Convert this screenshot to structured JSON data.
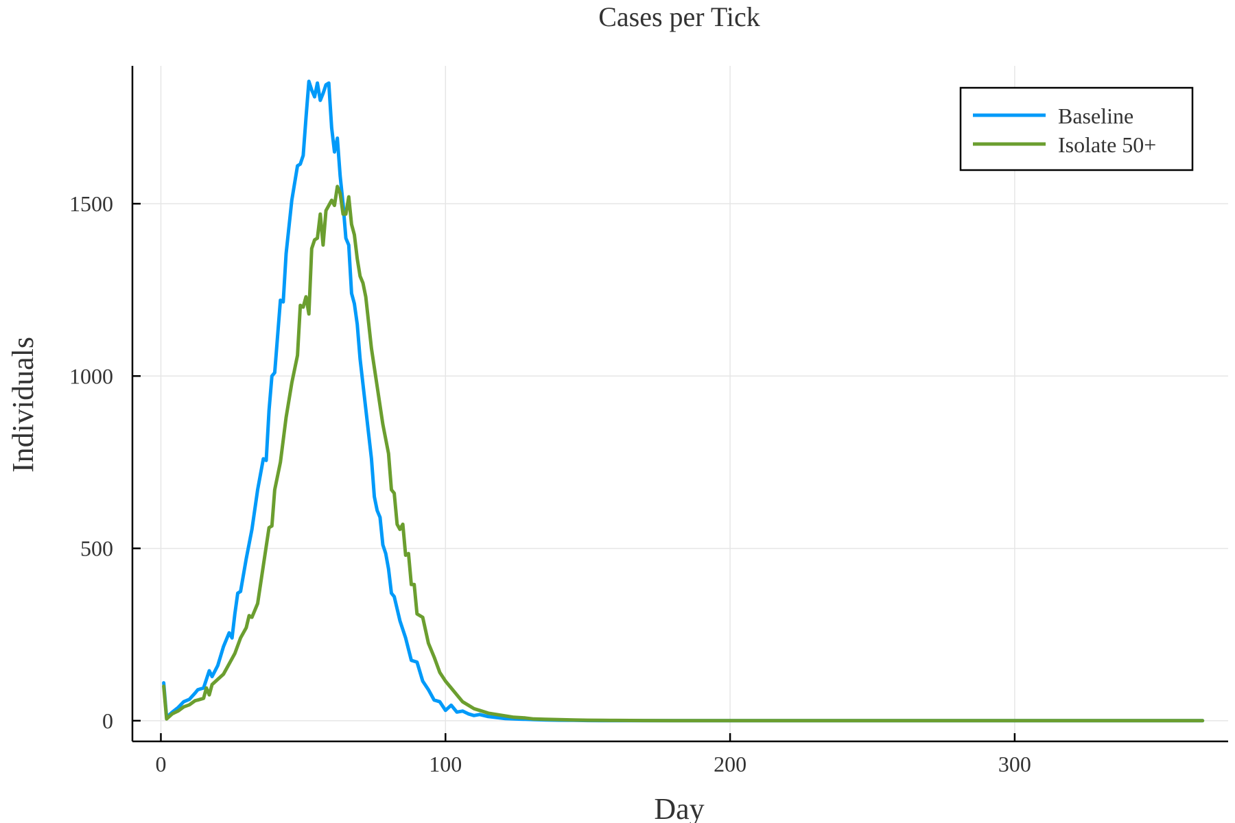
{
  "chart_data": {
    "type": "line",
    "title": "Cases per Tick",
    "xlabel": "Day",
    "ylabel": "Individuals",
    "xlim": [
      -10,
      375
    ],
    "ylim": [
      -60,
      1900
    ],
    "xticks": [
      0,
      100,
      200,
      300
    ],
    "yticks": [
      0,
      500,
      1000,
      1500
    ],
    "grid": true,
    "legend_position": "top-right",
    "series": [
      {
        "name": "Baseline",
        "color": "#009af9",
        "points": [
          [
            1,
            110
          ],
          [
            2,
            10
          ],
          [
            4,
            25
          ],
          [
            6,
            38
          ],
          [
            8,
            55
          ],
          [
            10,
            62
          ],
          [
            12,
            80
          ],
          [
            13,
            90
          ],
          [
            15,
            95
          ],
          [
            17,
            145
          ],
          [
            18,
            128
          ],
          [
            20,
            160
          ],
          [
            22,
            215
          ],
          [
            24,
            255
          ],
          [
            25,
            240
          ],
          [
            26,
            310
          ],
          [
            27,
            370
          ],
          [
            28,
            375
          ],
          [
            30,
            470
          ],
          [
            32,
            555
          ],
          [
            34,
            670
          ],
          [
            36,
            760
          ],
          [
            37,
            755
          ],
          [
            38,
            900
          ],
          [
            39,
            1000
          ],
          [
            40,
            1010
          ],
          [
            42,
            1220
          ],
          [
            43,
            1215
          ],
          [
            44,
            1355
          ],
          [
            46,
            1510
          ],
          [
            48,
            1610
          ],
          [
            49,
            1615
          ],
          [
            50,
            1640
          ],
          [
            51,
            1750
          ],
          [
            52,
            1855
          ],
          [
            53,
            1830
          ],
          [
            54,
            1810
          ],
          [
            55,
            1850
          ],
          [
            56,
            1800
          ],
          [
            57,
            1820
          ],
          [
            58,
            1845
          ],
          [
            59,
            1850
          ],
          [
            60,
            1720
          ],
          [
            61,
            1650
          ],
          [
            62,
            1690
          ],
          [
            63,
            1580
          ],
          [
            64,
            1500
          ],
          [
            65,
            1400
          ],
          [
            66,
            1380
          ],
          [
            67,
            1240
          ],
          [
            68,
            1210
          ],
          [
            69,
            1150
          ],
          [
            70,
            1050
          ],
          [
            72,
            905
          ],
          [
            74,
            760
          ],
          [
            75,
            650
          ],
          [
            76,
            610
          ],
          [
            77,
            590
          ],
          [
            78,
            510
          ],
          [
            79,
            485
          ],
          [
            80,
            440
          ],
          [
            81,
            370
          ],
          [
            82,
            360
          ],
          [
            84,
            290
          ],
          [
            86,
            240
          ],
          [
            88,
            175
          ],
          [
            90,
            170
          ],
          [
            92,
            115
          ],
          [
            94,
            90
          ],
          [
            96,
            60
          ],
          [
            98,
            55
          ],
          [
            100,
            30
          ],
          [
            102,
            45
          ],
          [
            104,
            25
          ],
          [
            106,
            28
          ],
          [
            108,
            20
          ],
          [
            110,
            15
          ],
          [
            112,
            18
          ],
          [
            115,
            12
          ],
          [
            118,
            9
          ],
          [
            121,
            6
          ],
          [
            124,
            5
          ],
          [
            128,
            4
          ],
          [
            131,
            3
          ],
          [
            135,
            2
          ],
          [
            140,
            1.5
          ],
          [
            145,
            1
          ],
          [
            150,
            0.5
          ],
          [
            155,
            0.3
          ],
          [
            160,
            0.2
          ],
          [
            170,
            0
          ],
          [
            180,
            0
          ],
          [
            200,
            0
          ],
          [
            250,
            0
          ],
          [
            300,
            0
          ],
          [
            350,
            0
          ],
          [
            366,
            0
          ]
        ]
      },
      {
        "name": "Isolate 50+",
        "color": "#6b9e2f",
        "points": [
          [
            1,
            100
          ],
          [
            2,
            5
          ],
          [
            4,
            20
          ],
          [
            6,
            28
          ],
          [
            8,
            40
          ],
          [
            10,
            46
          ],
          [
            12,
            58
          ],
          [
            13,
            60
          ],
          [
            15,
            65
          ],
          [
            16,
            95
          ],
          [
            17,
            75
          ],
          [
            18,
            105
          ],
          [
            20,
            120
          ],
          [
            22,
            135
          ],
          [
            24,
            165
          ],
          [
            26,
            195
          ],
          [
            28,
            240
          ],
          [
            30,
            270
          ],
          [
            31,
            305
          ],
          [
            32,
            300
          ],
          [
            34,
            340
          ],
          [
            36,
            450
          ],
          [
            38,
            560
          ],
          [
            39,
            565
          ],
          [
            40,
            670
          ],
          [
            42,
            750
          ],
          [
            44,
            880
          ],
          [
            46,
            980
          ],
          [
            48,
            1060
          ],
          [
            49,
            1205
          ],
          [
            50,
            1200
          ],
          [
            51,
            1230
          ],
          [
            52,
            1180
          ],
          [
            53,
            1370
          ],
          [
            54,
            1395
          ],
          [
            55,
            1400
          ],
          [
            56,
            1470
          ],
          [
            57,
            1380
          ],
          [
            58,
            1480
          ],
          [
            60,
            1510
          ],
          [
            61,
            1495
          ],
          [
            62,
            1550
          ],
          [
            63,
            1530
          ],
          [
            64,
            1470
          ],
          [
            65,
            1470
          ],
          [
            66,
            1520
          ],
          [
            67,
            1440
          ],
          [
            68,
            1410
          ],
          [
            69,
            1340
          ],
          [
            70,
            1290
          ],
          [
            71,
            1270
          ],
          [
            72,
            1230
          ],
          [
            74,
            1080
          ],
          [
            76,
            970
          ],
          [
            78,
            860
          ],
          [
            80,
            775
          ],
          [
            81,
            670
          ],
          [
            82,
            660
          ],
          [
            83,
            570
          ],
          [
            84,
            555
          ],
          [
            85,
            570
          ],
          [
            86,
            480
          ],
          [
            87,
            485
          ],
          [
            88,
            395
          ],
          [
            89,
            395
          ],
          [
            90,
            310
          ],
          [
            92,
            300
          ],
          [
            94,
            225
          ],
          [
            96,
            185
          ],
          [
            98,
            140
          ],
          [
            100,
            115
          ],
          [
            102,
            95
          ],
          [
            104,
            75
          ],
          [
            106,
            55
          ],
          [
            108,
            45
          ],
          [
            110,
            35
          ],
          [
            112,
            30
          ],
          [
            115,
            22
          ],
          [
            118,
            18
          ],
          [
            121,
            14
          ],
          [
            124,
            10
          ],
          [
            128,
            8
          ],
          [
            131,
            5
          ],
          [
            135,
            4
          ],
          [
            140,
            3
          ],
          [
            145,
            2
          ],
          [
            150,
            1.5
          ],
          [
            155,
            1
          ],
          [
            160,
            0.8
          ],
          [
            170,
            0.5
          ],
          [
            180,
            0.2
          ],
          [
            200,
            0
          ],
          [
            250,
            0
          ],
          [
            300,
            0
          ],
          [
            350,
            0
          ],
          [
            366,
            0
          ]
        ]
      }
    ]
  }
}
